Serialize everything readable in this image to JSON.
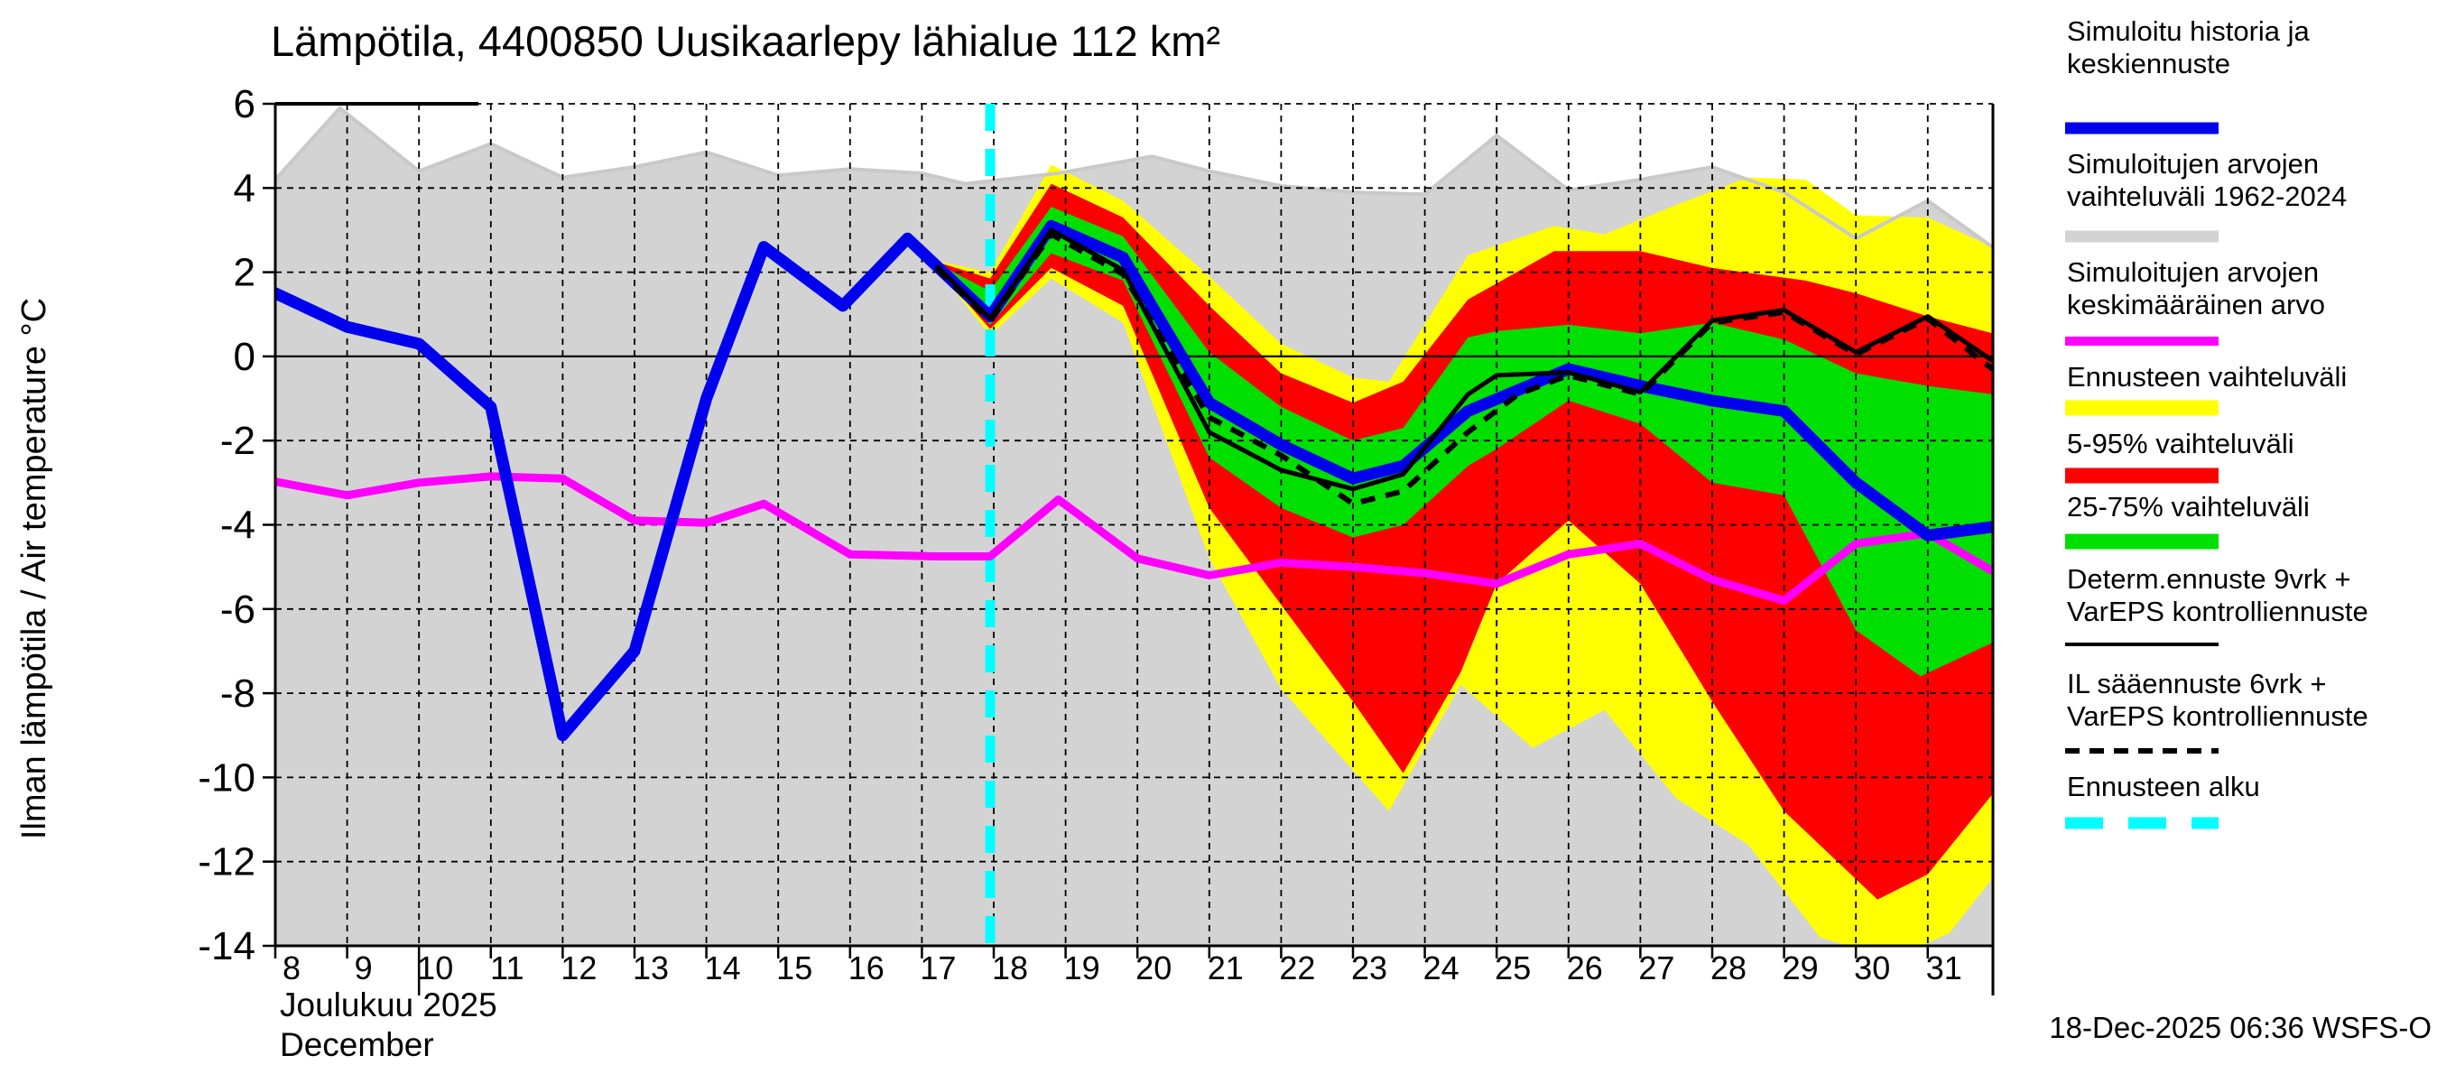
{
  "title": "Lämpötila, 4400850 Uusikaarlepy lähialue 112 km²",
  "y_axis": {
    "label": "Ilman lämpötila / Air temperature   °C"
  },
  "x_axis": {
    "month_label_fi": "Joulukuu  2025",
    "month_label_en": "December",
    "tick_days": [
      8,
      9,
      10,
      11,
      12,
      13,
      14,
      15,
      16,
      17,
      18,
      19,
      20,
      21,
      22,
      23,
      24,
      25,
      26,
      27,
      28,
      29,
      30,
      31
    ]
  },
  "footer": {
    "timestamp": "18-Dec-2025 06:36 WSFS-O"
  },
  "colors": {
    "blue": "#0000ee",
    "gray_fill": "#d3d3d3",
    "gray_line": "#c9c9c9",
    "magenta": "#ff00ff",
    "yellow": "#ffff00",
    "red": "#ff0000",
    "green": "#00e000",
    "cyan": "#00ffff",
    "black": "#000000"
  },
  "legend": [
    {
      "name": "simulated-history-and-mean-forecast",
      "lines": [
        "Simuloitu historia ja",
        "keskiennuste"
      ],
      "color": "#0000ee",
      "thickness": 13,
      "dash": ""
    },
    {
      "name": "simulated-range",
      "lines": [
        "Simuloitujen arvojen",
        "vaihteluväli 1962-2024"
      ],
      "color": "#d3d3d3",
      "thickness": 13,
      "dash": ""
    },
    {
      "name": "simulated-mean-value",
      "lines": [
        "Simuloitujen arvojen",
        "keskimääräinen arvo"
      ],
      "color": "#ff00ff",
      "thickness": 10,
      "dash": ""
    },
    {
      "name": "forecast-range",
      "lines": [
        "Ennusteen vaihteluväli"
      ],
      "color": "#ffff00",
      "thickness": 17,
      "dash": ""
    },
    {
      "name": "range-5-95",
      "lines": [
        "5-95% vaihteluväli"
      ],
      "color": "#ff0000",
      "thickness": 17,
      "dash": ""
    },
    {
      "name": "range-25-75",
      "lines": [
        "25-75% vaihteluväli"
      ],
      "color": "#00e000",
      "thickness": 17,
      "dash": ""
    },
    {
      "name": "deterministic-forecast",
      "lines": [
        "Determ.ennuste 9vrk +",
        "VarEPS kontrolliennuste"
      ],
      "color": "#000000",
      "thickness": 4,
      "dash": ""
    },
    {
      "name": "il-weather-forecast",
      "lines": [
        "IL sääennuste 6vrk  +",
        "VarEPS kontrolliennuste"
      ],
      "color": "#000000",
      "thickness": 6,
      "dash": "16 11"
    },
    {
      "name": "forecast-start",
      "lines": [
        "Ennusteen alku"
      ],
      "color": "#00ffff",
      "thickness": 13,
      "dash": "42 28"
    }
  ],
  "chart_data": {
    "type": "line",
    "title": "Lämpötila, 4400850 Uusikaarlepy lähialue 112 km²",
    "xlabel": "Joulukuu 2025 / December",
    "ylabel": "Ilman lämpötila / Air temperature °C",
    "x_unit": "day of December 2025",
    "xlim": [
      7.77,
      31.9
    ],
    "ylim": [
      -14,
      6
    ],
    "y_ticks": [
      6,
      4,
      2,
      0,
      -2,
      -4,
      -6,
      -8,
      -10,
      -12,
      -14
    ],
    "x_ticks": [
      8,
      9,
      10,
      11,
      12,
      13,
      14,
      15,
      16,
      17,
      18,
      19,
      20,
      21,
      22,
      23,
      24,
      25,
      26,
      27,
      28,
      29,
      30,
      31
    ],
    "grid": true,
    "legend_position": "right",
    "forecast_start_day": 17.95,
    "series": {
      "simulated_history_and_mean_forecast_blue": {
        "points": [
          [
            7.77,
            1.6
          ],
          [
            8,
            1.5
          ],
          [
            9,
            0.7
          ],
          [
            10,
            0.3
          ],
          [
            11,
            -1.2
          ],
          [
            12,
            -9.0
          ],
          [
            13,
            -7.0
          ],
          [
            14,
            -1.0
          ],
          [
            14.8,
            2.6
          ],
          [
            15.9,
            1.2
          ],
          [
            16.8,
            2.8
          ],
          [
            17.95,
            0.95
          ],
          [
            18.8,
            3.1
          ],
          [
            19.8,
            2.35
          ],
          [
            21,
            -1.1
          ],
          [
            22,
            -2.1
          ],
          [
            23,
            -2.9
          ],
          [
            23.7,
            -2.6
          ],
          [
            24.6,
            -1.3
          ],
          [
            26,
            -0.3
          ],
          [
            27,
            -0.7
          ],
          [
            28,
            -1.05
          ],
          [
            29,
            -1.3
          ],
          [
            30,
            -3.0
          ],
          [
            31,
            -4.25
          ],
          [
            31.9,
            -4.05
          ]
        ]
      },
      "simulated_range_1962_2024_upper_gray": {
        "points": [
          [
            7.77,
            4.15
          ],
          [
            8,
            4.2
          ],
          [
            8.9,
            5.9
          ],
          [
            10,
            4.4
          ],
          [
            11,
            5.05
          ],
          [
            12,
            4.25
          ],
          [
            13,
            4.5
          ],
          [
            14,
            4.85
          ],
          [
            15,
            4.3
          ],
          [
            16,
            4.45
          ],
          [
            17,
            4.35
          ],
          [
            17.6,
            4.1
          ],
          [
            18.9,
            4.35
          ],
          [
            20.2,
            4.75
          ],
          [
            21,
            4.4
          ],
          [
            22,
            4.05
          ],
          [
            23,
            3.9
          ],
          [
            24,
            3.85
          ],
          [
            25,
            5.25
          ],
          [
            26,
            3.95
          ],
          [
            27,
            4.2
          ],
          [
            28,
            4.5
          ],
          [
            29,
            3.9
          ],
          [
            30,
            2.8
          ],
          [
            31,
            3.7
          ],
          [
            31.9,
            2.6
          ]
        ],
        "lower_bound": "below -14 (clipped at plot bottom)"
      },
      "simulated_mean_magenta": {
        "points": [
          [
            7.77,
            -2.9
          ],
          [
            9,
            -3.3
          ],
          [
            10,
            -3.0
          ],
          [
            11,
            -2.85
          ],
          [
            12,
            -2.9
          ],
          [
            13,
            -3.9
          ],
          [
            14,
            -3.95
          ],
          [
            14.8,
            -3.5
          ],
          [
            16,
            -4.7
          ],
          [
            17.2,
            -4.75
          ],
          [
            17.95,
            -4.75
          ],
          [
            18.9,
            -3.4
          ],
          [
            20,
            -4.8
          ],
          [
            21,
            -5.2
          ],
          [
            22,
            -4.9
          ],
          [
            23,
            -5.0
          ],
          [
            24,
            -5.15
          ],
          [
            25,
            -5.4
          ],
          [
            26,
            -4.7
          ],
          [
            27,
            -4.45
          ],
          [
            28,
            -5.3
          ],
          [
            29,
            -5.8
          ],
          [
            30,
            -4.45
          ],
          [
            31,
            -4.2
          ],
          [
            31.9,
            -5.1
          ]
        ]
      },
      "forecast_range_yellow": {
        "top": [
          [
            17.1,
            2.3
          ],
          [
            17.95,
            2.0
          ],
          [
            18.8,
            4.55
          ],
          [
            19.8,
            3.7
          ],
          [
            21,
            1.9
          ],
          [
            22,
            0.3
          ],
          [
            23,
            -0.5
          ],
          [
            23.5,
            -0.6
          ],
          [
            24.6,
            2.4
          ],
          [
            25.8,
            3.1
          ],
          [
            26.5,
            2.9
          ],
          [
            27.5,
            3.6
          ],
          [
            28.5,
            4.25
          ],
          [
            29.3,
            4.2
          ],
          [
            30,
            3.35
          ],
          [
            31,
            3.3
          ],
          [
            31.9,
            2.6
          ]
        ],
        "bottom": [
          [
            17.1,
            2.3
          ],
          [
            17.95,
            0.5
          ],
          [
            18.8,
            1.85
          ],
          [
            19.8,
            0.8
          ],
          [
            21,
            -4.8
          ],
          [
            22,
            -7.9
          ],
          [
            23.5,
            -10.8
          ],
          [
            24.5,
            -7.8
          ],
          [
            25.5,
            -9.3
          ],
          [
            26.5,
            -8.4
          ],
          [
            27.5,
            -10.5
          ],
          [
            28.5,
            -11.6
          ],
          [
            29.5,
            -13.8
          ],
          [
            30.5,
            -14.3
          ],
          [
            31.3,
            -13.7
          ],
          [
            31.9,
            -12.4
          ]
        ]
      },
      "range_5_95_red": {
        "top": [
          [
            17.1,
            2.3
          ],
          [
            17.95,
            1.85
          ],
          [
            18.8,
            4.1
          ],
          [
            19.8,
            3.3
          ],
          [
            21,
            1.2
          ],
          [
            22,
            -0.4
          ],
          [
            23,
            -1.1
          ],
          [
            23.7,
            -0.6
          ],
          [
            24.6,
            1.35
          ],
          [
            25.8,
            2.5
          ],
          [
            27,
            2.5
          ],
          [
            28,
            2.1
          ],
          [
            29.3,
            1.8
          ],
          [
            30,
            1.5
          ],
          [
            31,
            0.95
          ],
          [
            31.9,
            0.55
          ]
        ],
        "bottom": [
          [
            17.1,
            2.3
          ],
          [
            17.95,
            0.65
          ],
          [
            18.8,
            2.1
          ],
          [
            19.8,
            1.2
          ],
          [
            21,
            -3.6
          ],
          [
            22,
            -5.9
          ],
          [
            23,
            -8.2
          ],
          [
            23.7,
            -9.9
          ],
          [
            24.5,
            -7.5
          ],
          [
            25,
            -5.4
          ],
          [
            26,
            -3.9
          ],
          [
            27,
            -5.4
          ],
          [
            28,
            -8.2
          ],
          [
            29,
            -10.8
          ],
          [
            30.3,
            -12.9
          ],
          [
            31,
            -12.3
          ],
          [
            31.9,
            -10.4
          ]
        ]
      },
      "range_25_75_green": {
        "top": [
          [
            17.1,
            2.3
          ],
          [
            17.95,
            1.55
          ],
          [
            18.8,
            3.55
          ],
          [
            19.8,
            2.85
          ],
          [
            21,
            0.1
          ],
          [
            22,
            -1.2
          ],
          [
            23,
            -2.0
          ],
          [
            23.7,
            -1.7
          ],
          [
            24.6,
            0.45
          ],
          [
            25,
            0.6
          ],
          [
            26,
            0.75
          ],
          [
            27,
            0.55
          ],
          [
            28,
            0.8
          ],
          [
            29,
            0.4
          ],
          [
            30,
            -0.4
          ],
          [
            31,
            -0.7
          ],
          [
            31.9,
            -0.9
          ]
        ],
        "bottom": [
          [
            17.1,
            2.3
          ],
          [
            17.95,
            0.75
          ],
          [
            18.8,
            2.45
          ],
          [
            19.8,
            1.8
          ],
          [
            21,
            -2.4
          ],
          [
            22,
            -3.6
          ],
          [
            23,
            -4.3
          ],
          [
            23.7,
            -4.0
          ],
          [
            24.6,
            -2.6
          ],
          [
            25,
            -2.2
          ],
          [
            26,
            -1.05
          ],
          [
            27,
            -1.6
          ],
          [
            28,
            -3.0
          ],
          [
            29,
            -3.3
          ],
          [
            30,
            -6.5
          ],
          [
            30.9,
            -7.6
          ],
          [
            31.9,
            -6.8
          ]
        ]
      },
      "deterministic_forecast_black_solid": {
        "points": [
          [
            17.2,
            2.15
          ],
          [
            17.95,
            0.9
          ],
          [
            18.8,
            3.0
          ],
          [
            19.8,
            2.05
          ],
          [
            21,
            -1.8
          ],
          [
            22,
            -2.7
          ],
          [
            23,
            -3.15
          ],
          [
            23.7,
            -2.8
          ],
          [
            24.6,
            -0.9
          ],
          [
            25,
            -0.45
          ],
          [
            26,
            -0.38
          ],
          [
            27,
            -0.85
          ],
          [
            28,
            0.85
          ],
          [
            29,
            1.1
          ],
          [
            30,
            0.1
          ],
          [
            31,
            0.95
          ],
          [
            31.9,
            -0.1
          ]
        ]
      },
      "il_weather_forecast_black_dashed": {
        "points": [
          [
            17.2,
            2.1
          ],
          [
            17.95,
            0.85
          ],
          [
            18.8,
            2.9
          ],
          [
            19.8,
            1.95
          ],
          [
            21,
            -1.45
          ],
          [
            22,
            -2.35
          ],
          [
            23,
            -3.5
          ],
          [
            23.7,
            -3.2
          ],
          [
            24.6,
            -1.8
          ],
          [
            25.3,
            -0.9
          ],
          [
            26,
            -0.45
          ],
          [
            27,
            -0.9
          ],
          [
            28,
            0.8
          ],
          [
            29,
            1.05
          ],
          [
            30,
            0.05
          ],
          [
            31,
            0.9
          ],
          [
            31.9,
            -0.3
          ]
        ]
      }
    }
  }
}
